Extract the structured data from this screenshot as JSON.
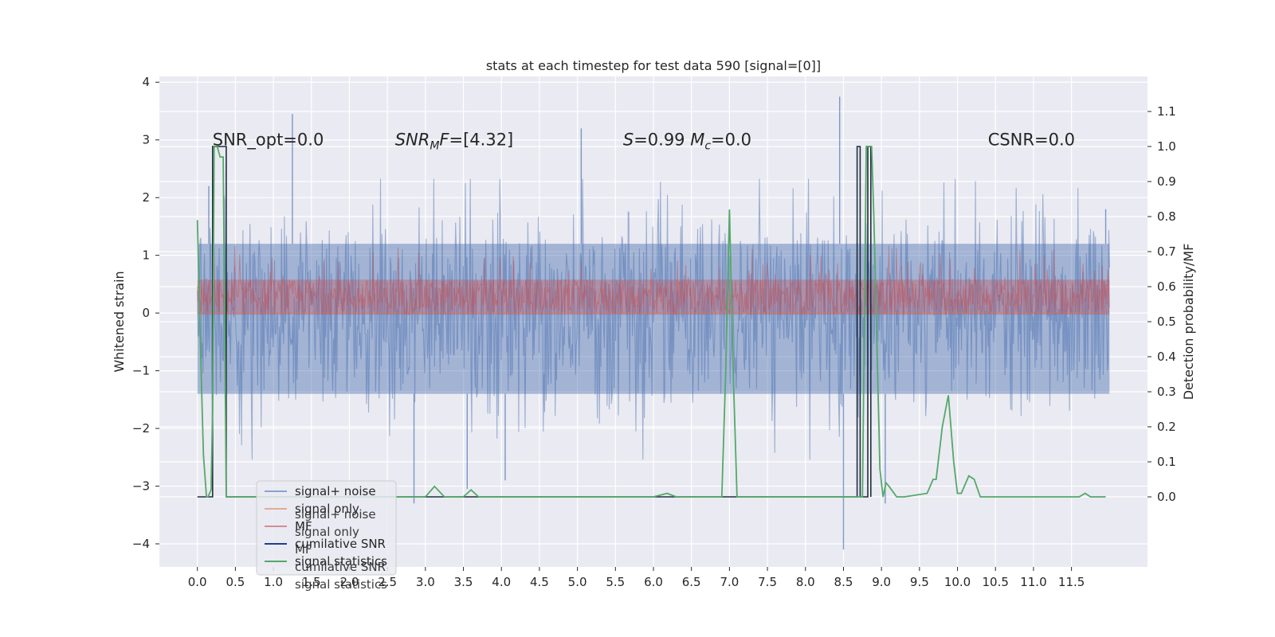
{
  "chart_data": {
    "type": "line",
    "title": "stats at each timestep for test data 590 [signal=[0]]",
    "xlabel": "",
    "ylabel_left": "Whitened strain",
    "ylabel_right": "Detection probability/MF",
    "xlim": [
      -0.5,
      12.5
    ],
    "ylim_left": [
      -4.4,
      4.1
    ],
    "ylim_right": [
      -0.2,
      1.2
    ],
    "x_ticks": [
      "0.0",
      "0.5",
      "1.0",
      "1.5",
      "2.0",
      "2.5",
      "3.0",
      "3.5",
      "4.0",
      "4.5",
      "5.0",
      "5.5",
      "6.0",
      "6.5",
      "7.0",
      "7.5",
      "8.0",
      "8.5",
      "9.0",
      "9.5",
      "10.0",
      "10.5",
      "11.0",
      "11.5"
    ],
    "y_ticks_left": [
      "-4",
      "-3",
      "-2",
      "-1",
      "0",
      "1",
      "2",
      "3",
      "4"
    ],
    "y_ticks_right": [
      "0.0",
      "0.1",
      "0.2",
      "0.3",
      "0.4",
      "0.5",
      "0.6",
      "0.7",
      "0.8",
      "0.9",
      "1.0",
      "1.1"
    ],
    "grid": true,
    "legend_position": "lower-left",
    "annotations": [
      {
        "id": "snr-opt",
        "x": 0.2,
        "y": 3.0,
        "parts": [
          {
            "t": "SNR_opt=0.0"
          }
        ]
      },
      {
        "id": "snr-mf",
        "x": 2.6,
        "y": 3.0,
        "parts": [
          {
            "t": "SNR",
            "it": true
          },
          {
            "t": "M",
            "it": true,
            "sub": true
          },
          {
            "t": "F",
            "it": true
          },
          {
            "t": "=[4.32]"
          }
        ]
      },
      {
        "id": "s-mc",
        "x": 5.6,
        "y": 3.0,
        "parts": [
          {
            "t": "S",
            "it": true
          },
          {
            "t": "=0.99   "
          },
          {
            "t": "M",
            "it": true
          },
          {
            "t": "c",
            "it": true,
            "sub": true
          },
          {
            "t": "=0.0"
          }
        ]
      },
      {
        "id": "csnr",
        "x": 10.4,
        "y": 3.0,
        "parts": [
          {
            "t": "CSNR=0.0"
          }
        ]
      }
    ],
    "series": [
      {
        "name": "signal+ noise",
        "color": "#4c72b0",
        "opacity": 0.5,
        "axis": "left",
        "envelope": {
          "x_start": 0.0,
          "x_end": 12.0,
          "typical_high": 1.2,
          "typical_low": -1.4,
          "max": 3.75,
          "min": -4.1,
          "peaks": [
            [
              8.45,
              3.75
            ],
            [
              1.25,
              3.45
            ],
            [
              5.05,
              3.2
            ],
            [
              0.15,
              2.2
            ],
            [
              11.95,
              1.8
            ]
          ],
          "troughs": [
            [
              8.5,
              -4.1
            ],
            [
              2.85,
              -3.3
            ],
            [
              9.05,
              -3.3
            ],
            [
              3.55,
              -3.05
            ],
            [
              4.05,
              -2.9
            ]
          ]
        }
      },
      {
        "name": "signal only",
        "color": "#dd8452",
        "axis": "left",
        "values_constant": 0.0
      },
      {
        "name": "MF",
        "color": "#c44e52",
        "opacity": 0.5,
        "axis": "right",
        "band": {
          "x_start": 0.0,
          "x_end": 12.0,
          "low": 0.52,
          "high": 0.62,
          "spike_max": 0.72
        }
      },
      {
        "name": "cumilative SNR",
        "color": "#1f2f3f",
        "axis": "right",
        "x": [
          0.0,
          0.17,
          0.2,
          0.2,
          0.38,
          0.38,
          0.42,
          0.42,
          8.68,
          8.68,
          8.72,
          8.72,
          8.82,
          8.82,
          8.86,
          8.86
        ],
        "y": [
          0.0,
          0.0,
          0.0,
          1.0,
          1.0,
          0.0,
          0.0,
          0.0,
          0.0,
          1.0,
          1.0,
          0.0,
          0.0,
          1.0,
          1.0,
          0.0
        ]
      },
      {
        "name": "signal statistics",
        "color": "#55a868",
        "axis": "right",
        "x": [
          0.0,
          0.05,
          0.08,
          0.12,
          0.14,
          0.18,
          0.2,
          0.22,
          0.26,
          0.3,
          0.34,
          0.38,
          0.4,
          0.6,
          2.8,
          3.0,
          3.12,
          3.25,
          3.5,
          3.6,
          3.7,
          4.0,
          6.0,
          6.18,
          6.3,
          6.9,
          6.95,
          7.0,
          7.05,
          7.1,
          8.0,
          8.35,
          8.5,
          8.6,
          8.75,
          8.8,
          8.87,
          8.9,
          8.98,
          9.02,
          9.06,
          9.1,
          9.2,
          9.3,
          9.6,
          9.68,
          9.72,
          9.8,
          9.88,
          9.95,
          10.0,
          10.05,
          10.15,
          10.22,
          10.3,
          10.4,
          10.5,
          11.6,
          11.68,
          11.75,
          11.95
        ],
        "y": [
          0.79,
          0.35,
          0.12,
          0.0,
          0.0,
          0.02,
          0.25,
          1.0,
          1.0,
          0.97,
          0.97,
          0.0,
          0.0,
          0.0,
          0.0,
          0.0,
          0.03,
          0.0,
          0.0,
          0.02,
          0.0,
          0.0,
          0.0,
          0.01,
          0.0,
          0.0,
          0.35,
          0.82,
          0.35,
          0.0,
          0.0,
          0.0,
          0.0,
          0.0,
          0.0,
          1.0,
          1.0,
          0.8,
          0.08,
          0.0,
          0.04,
          0.03,
          0.0,
          0.0,
          0.01,
          0.05,
          0.05,
          0.2,
          0.29,
          0.1,
          0.01,
          0.01,
          0.06,
          0.05,
          0.0,
          0.0,
          0.0,
          0.0,
          0.01,
          0.0,
          0.0
        ]
      }
    ]
  },
  "legend_items": [
    {
      "label": "signal+ noise",
      "color": "#4c72b0",
      "opacity": 0.6
    },
    {
      "label": "signal only",
      "color": "#dd8452",
      "opacity": 0.6
    },
    {
      "label": "MF",
      "color": "#c44e52",
      "opacity": 0.6
    },
    {
      "label": "cumilative SNR",
      "color": "#1f3f8f",
      "opacity": 1
    },
    {
      "label": "signal statistics",
      "color": "#55a868",
      "opacity": 1
    }
  ],
  "legend_ghost": [
    "signal+ noise",
    "signal only",
    "MF",
    "cumilative SNR",
    "signal statistics"
  ],
  "style": {
    "plot_background": "#eaeaf2",
    "grid_color": "#ffffff"
  }
}
